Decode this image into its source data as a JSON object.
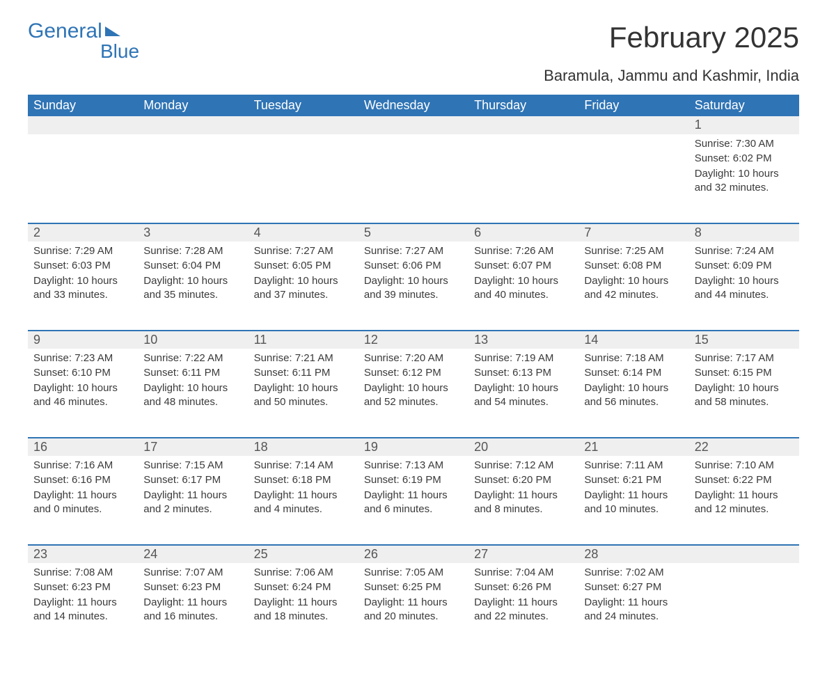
{
  "logo": {
    "word1": "General",
    "word2": "Blue"
  },
  "header": {
    "month_title": "February 2025",
    "location": "Baramula, Jammu and Kashmir, India"
  },
  "styling": {
    "brand_color": "#2f74b5",
    "header_bg": "#2f74b5",
    "header_fg": "#ffffff",
    "daynum_bg": "#efefef",
    "week_border": "#2f74b5",
    "body_fg": "#333333",
    "page_bg": "#ffffff",
    "month_title_fontsize": 42,
    "location_fontsize": 22,
    "dayheader_fontsize": 18,
    "cell_fontsize": 15
  },
  "labels": {
    "sunrise": "Sunrise:",
    "sunset": "Sunset:",
    "daylight": "Daylight:"
  },
  "days_of_week": [
    "Sunday",
    "Monday",
    "Tuesday",
    "Wednesday",
    "Thursday",
    "Friday",
    "Saturday"
  ],
  "weeks": [
    [
      null,
      null,
      null,
      null,
      null,
      null,
      {
        "n": "1",
        "sunrise": "7:30 AM",
        "sunset": "6:02 PM",
        "daylight": "10 hours and 32 minutes."
      }
    ],
    [
      {
        "n": "2",
        "sunrise": "7:29 AM",
        "sunset": "6:03 PM",
        "daylight": "10 hours and 33 minutes."
      },
      {
        "n": "3",
        "sunrise": "7:28 AM",
        "sunset": "6:04 PM",
        "daylight": "10 hours and 35 minutes."
      },
      {
        "n": "4",
        "sunrise": "7:27 AM",
        "sunset": "6:05 PM",
        "daylight": "10 hours and 37 minutes."
      },
      {
        "n": "5",
        "sunrise": "7:27 AM",
        "sunset": "6:06 PM",
        "daylight": "10 hours and 39 minutes."
      },
      {
        "n": "6",
        "sunrise": "7:26 AM",
        "sunset": "6:07 PM",
        "daylight": "10 hours and 40 minutes."
      },
      {
        "n": "7",
        "sunrise": "7:25 AM",
        "sunset": "6:08 PM",
        "daylight": "10 hours and 42 minutes."
      },
      {
        "n": "8",
        "sunrise": "7:24 AM",
        "sunset": "6:09 PM",
        "daylight": "10 hours and 44 minutes."
      }
    ],
    [
      {
        "n": "9",
        "sunrise": "7:23 AM",
        "sunset": "6:10 PM",
        "daylight": "10 hours and 46 minutes."
      },
      {
        "n": "10",
        "sunrise": "7:22 AM",
        "sunset": "6:11 PM",
        "daylight": "10 hours and 48 minutes."
      },
      {
        "n": "11",
        "sunrise": "7:21 AM",
        "sunset": "6:11 PM",
        "daylight": "10 hours and 50 minutes."
      },
      {
        "n": "12",
        "sunrise": "7:20 AM",
        "sunset": "6:12 PM",
        "daylight": "10 hours and 52 minutes."
      },
      {
        "n": "13",
        "sunrise": "7:19 AM",
        "sunset": "6:13 PM",
        "daylight": "10 hours and 54 minutes."
      },
      {
        "n": "14",
        "sunrise": "7:18 AM",
        "sunset": "6:14 PM",
        "daylight": "10 hours and 56 minutes."
      },
      {
        "n": "15",
        "sunrise": "7:17 AM",
        "sunset": "6:15 PM",
        "daylight": "10 hours and 58 minutes."
      }
    ],
    [
      {
        "n": "16",
        "sunrise": "7:16 AM",
        "sunset": "6:16 PM",
        "daylight": "11 hours and 0 minutes."
      },
      {
        "n": "17",
        "sunrise": "7:15 AM",
        "sunset": "6:17 PM",
        "daylight": "11 hours and 2 minutes."
      },
      {
        "n": "18",
        "sunrise": "7:14 AM",
        "sunset": "6:18 PM",
        "daylight": "11 hours and 4 minutes."
      },
      {
        "n": "19",
        "sunrise": "7:13 AM",
        "sunset": "6:19 PM",
        "daylight": "11 hours and 6 minutes."
      },
      {
        "n": "20",
        "sunrise": "7:12 AM",
        "sunset": "6:20 PM",
        "daylight": "11 hours and 8 minutes."
      },
      {
        "n": "21",
        "sunrise": "7:11 AM",
        "sunset": "6:21 PM",
        "daylight": "11 hours and 10 minutes."
      },
      {
        "n": "22",
        "sunrise": "7:10 AM",
        "sunset": "6:22 PM",
        "daylight": "11 hours and 12 minutes."
      }
    ],
    [
      {
        "n": "23",
        "sunrise": "7:08 AM",
        "sunset": "6:23 PM",
        "daylight": "11 hours and 14 minutes."
      },
      {
        "n": "24",
        "sunrise": "7:07 AM",
        "sunset": "6:23 PM",
        "daylight": "11 hours and 16 minutes."
      },
      {
        "n": "25",
        "sunrise": "7:06 AM",
        "sunset": "6:24 PM",
        "daylight": "11 hours and 18 minutes."
      },
      {
        "n": "26",
        "sunrise": "7:05 AM",
        "sunset": "6:25 PM",
        "daylight": "11 hours and 20 minutes."
      },
      {
        "n": "27",
        "sunrise": "7:04 AM",
        "sunset": "6:26 PM",
        "daylight": "11 hours and 22 minutes."
      },
      {
        "n": "28",
        "sunrise": "7:02 AM",
        "sunset": "6:27 PM",
        "daylight": "11 hours and 24 minutes."
      },
      null
    ]
  ]
}
